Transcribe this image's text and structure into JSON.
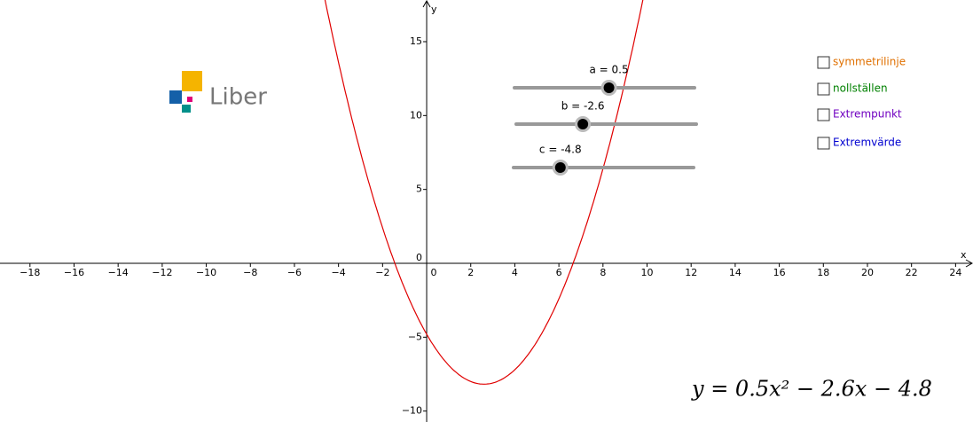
{
  "app": {
    "logo_text": "Liber"
  },
  "graph": {
    "xlim": [
      -19.36,
      24.79
    ],
    "ylim": [
      -10.74,
      17.82
    ],
    "x_label": "x",
    "y_label": "y",
    "xticks": [
      {
        "value": -18,
        "label": "−18"
      },
      {
        "value": -16,
        "label": "−16"
      },
      {
        "value": -14,
        "label": "−14"
      },
      {
        "value": -12,
        "label": "−12"
      },
      {
        "value": -10,
        "label": "−10"
      },
      {
        "value": -8,
        "label": "−8"
      },
      {
        "value": -6,
        "label": "−6"
      },
      {
        "value": -4,
        "label": "−4"
      },
      {
        "value": -2,
        "label": "−2"
      },
      0,
      2,
      4,
      6,
      8,
      10,
      12,
      14,
      16,
      18,
      20,
      22,
      24
    ],
    "yticks": [
      {
        "value": -10,
        "label": "−10"
      },
      {
        "value": -5,
        "label": "−5"
      },
      0,
      5,
      10,
      15
    ],
    "curve_color": "#e00000"
  },
  "sliders": [
    {
      "label": "a = 0.5",
      "value": 0.5,
      "min": -10,
      "max": 10
    },
    {
      "label": "b = -2.6",
      "value": -2.6,
      "min": -10,
      "max": 10
    },
    {
      "label": "c = -4.8",
      "value": -4.8,
      "min": -10,
      "max": 10
    }
  ],
  "checkboxes": [
    {
      "label": "symmetrilinje",
      "color": "#e07000"
    },
    {
      "label": "nollställen",
      "color": "#008000"
    },
    {
      "label": "Extrempunkt",
      "color": "#7000c0"
    },
    {
      "label": "Extremvärde",
      "color": "#0000d0"
    }
  ],
  "formula": "y = 0.5x² − 2.6x − 4.8"
}
